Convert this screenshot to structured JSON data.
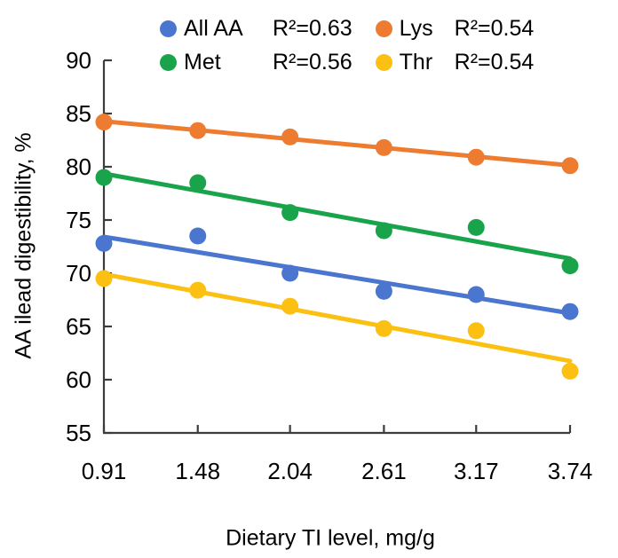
{
  "figure": {
    "y_axis_title": "AA ilead digestibility, %",
    "x_axis_title": "Dietary TI level, mg/g"
  },
  "legend": {
    "items": [
      {
        "name": "All AA",
        "r2": "R²=0.63",
        "color": "#4a76d0"
      },
      {
        "name": "Met",
        "r2": "R²=0.56",
        "color": "#19a44b"
      },
      {
        "name": "Lys",
        "r2": "R²=0.54",
        "color": "#ee7c30"
      },
      {
        "name": "Thr",
        "r2": "R²=0.54",
        "color": "#fcc013"
      }
    ]
  },
  "chart_data": {
    "type": "scatter",
    "title": "",
    "xlabel": "Dietary TI level, mg/g",
    "ylabel": "AA ilead digestibility, %",
    "x": [
      0.91,
      1.48,
      2.04,
      2.61,
      3.17,
      3.74
    ],
    "x_tick_labels": [
      "0.91",
      "1.48",
      "2.04",
      "2.61",
      "3.17",
      "3.74"
    ],
    "ylim": [
      55,
      90
    ],
    "yticks": [
      55,
      60,
      65,
      70,
      75,
      80,
      85,
      90
    ],
    "grid": false,
    "legend_position": "top",
    "series": [
      {
        "name": "All AA",
        "r2": 0.63,
        "color": "#4a76d0",
        "trendline": true,
        "values": [
          72.8,
          73.5,
          70.0,
          68.3,
          68.0,
          66.4
        ]
      },
      {
        "name": "Met",
        "r2": 0.56,
        "color": "#19a44b",
        "trendline": true,
        "values": [
          79.0,
          78.5,
          75.7,
          74.0,
          74.3,
          70.7
        ]
      },
      {
        "name": "Lys",
        "r2": 0.54,
        "color": "#ee7c30",
        "trendline": true,
        "values": [
          84.2,
          83.4,
          82.8,
          81.8,
          80.9,
          80.1
        ]
      },
      {
        "name": "Thr",
        "r2": 0.54,
        "color": "#fcc013",
        "trendline": true,
        "values": [
          69.5,
          68.4,
          66.9,
          64.8,
          64.6,
          60.8
        ]
      }
    ]
  }
}
